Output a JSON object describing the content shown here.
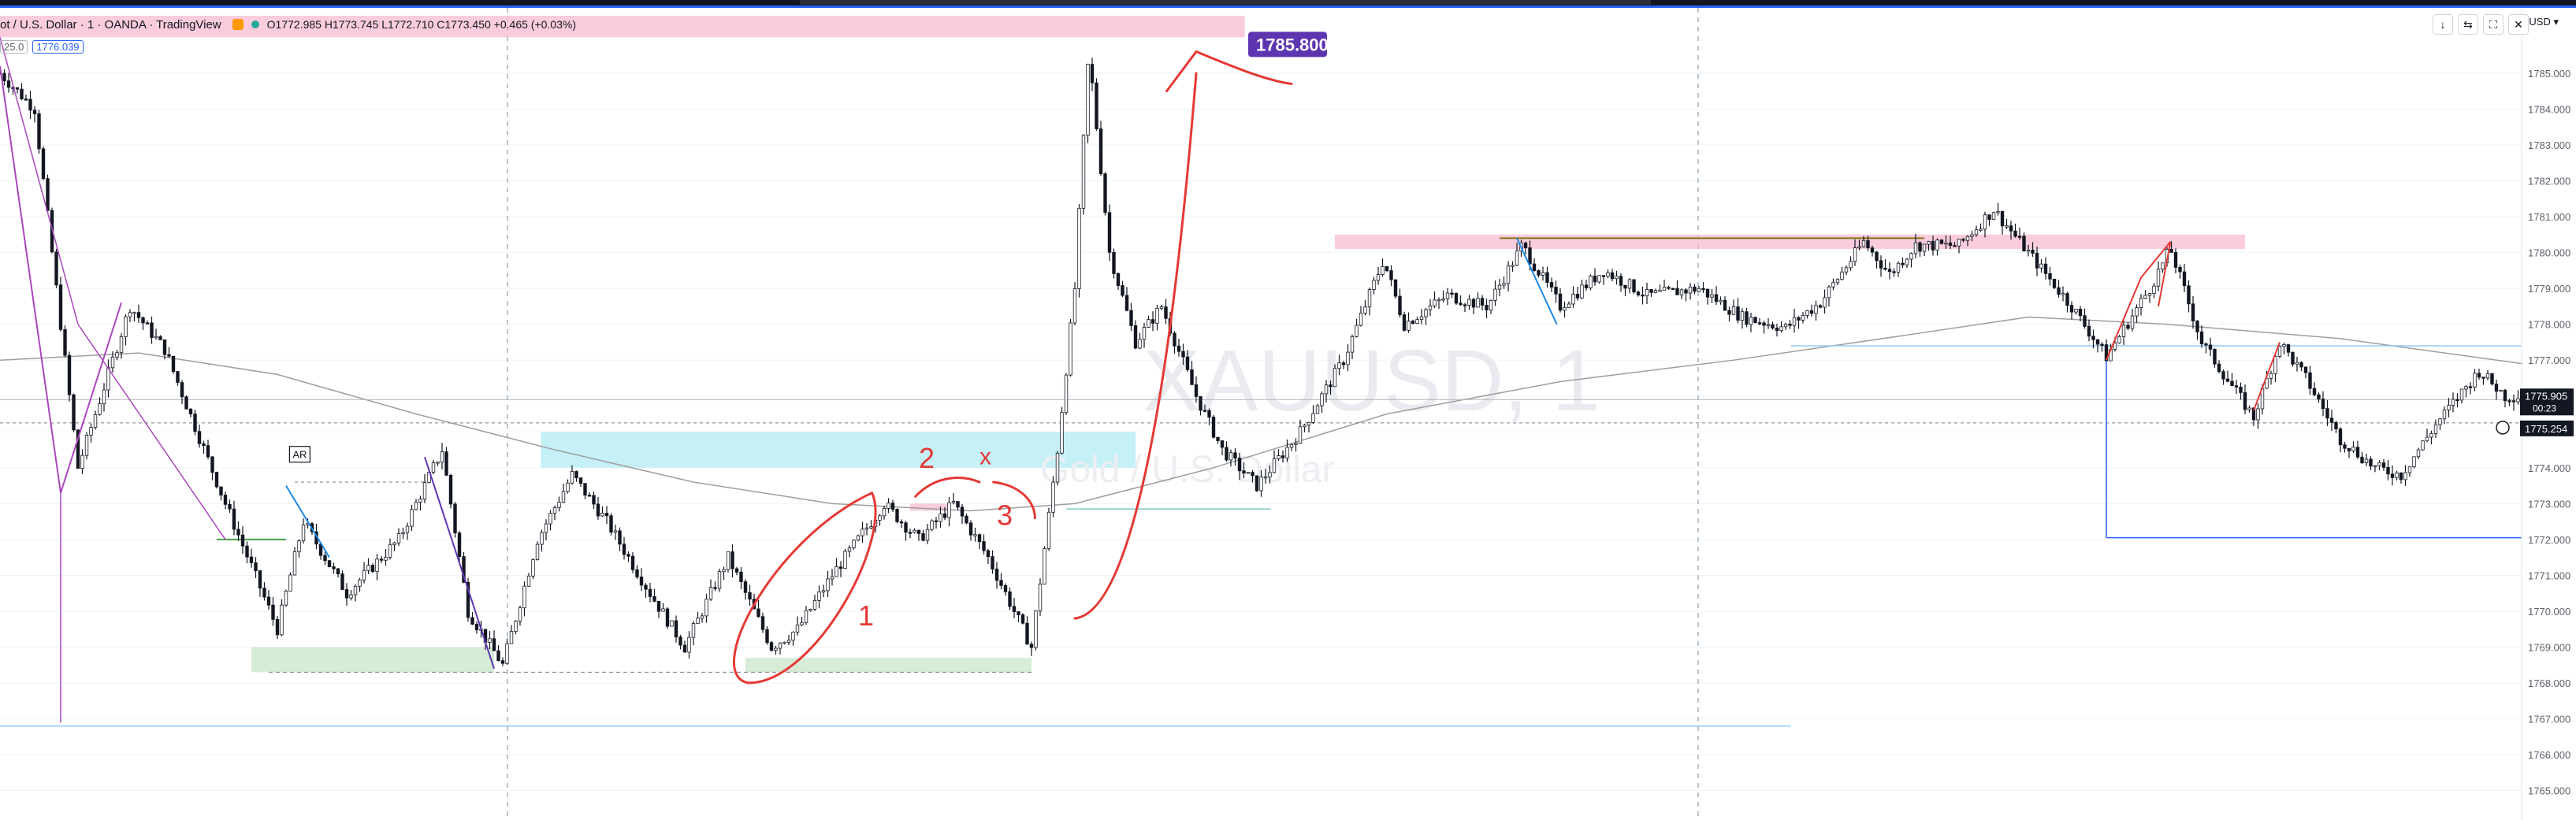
{
  "window": {
    "symbol_title": "ot / U.S. Dollar · 1 · OANDA · TradingView",
    "ohlc": "O1772.985 H1773.745 L1772.710 C1773.450 +0.465 (+0.03%)",
    "indicator_label": "25.0",
    "indicator_value": "1776.039",
    "currency_label": "USD",
    "controls": [
      "↓",
      "⇆",
      "⛶",
      "✕"
    ]
  },
  "chart_data": {
    "type": "candlestick",
    "watermark": "XAUUSD, 1",
    "watermark_sub": "Gold / U.S. Dollar",
    "ylim": [
      1764.4,
      1786.6
    ],
    "y_ticks": [
      1765,
      1766,
      1767,
      1768,
      1769,
      1770,
      1771,
      1772,
      1773,
      1774,
      1775,
      1776,
      1777,
      1778,
      1779,
      1780,
      1781,
      1782,
      1783,
      1784,
      1785
    ],
    "tick_format_decimals": 3,
    "price_path": [
      [
        0,
        1785.0
      ],
      [
        20,
        1784.0
      ],
      [
        45,
        1774.0
      ],
      [
        75,
        1778.5
      ],
      [
        95,
        1777.3
      ],
      [
        130,
        1773.0
      ],
      [
        160,
        1769.5
      ],
      [
        175,
        1772.5
      ],
      [
        200,
        1770.5
      ],
      [
        230,
        1772.0
      ],
      [
        255,
        1774.5
      ],
      [
        270,
        1770.0
      ],
      [
        290,
        1768.5
      ],
      [
        310,
        1772.0
      ],
      [
        330,
        1773.8
      ],
      [
        350,
        1772.5
      ],
      [
        375,
        1770.5
      ],
      [
        395,
        1769.0
      ],
      [
        420,
        1771.5
      ],
      [
        445,
        1769.0
      ],
      [
        460,
        1769.5
      ],
      [
        480,
        1771.0
      ],
      [
        510,
        1773.0
      ],
      [
        530,
        1772.0
      ],
      [
        550,
        1773.0
      ],
      [
        570,
        1771.5
      ],
      [
        595,
        1769.0
      ],
      [
        610,
        1774.5
      ],
      [
        620,
        1779.0
      ],
      [
        628,
        1785.6
      ],
      [
        640,
        1780.0
      ],
      [
        655,
        1777.5
      ],
      [
        670,
        1778.5
      ],
      [
        690,
        1776.0
      ],
      [
        705,
        1774.5
      ],
      [
        725,
        1773.5
      ],
      [
        750,
        1775.0
      ],
      [
        775,
        1777.0
      ],
      [
        798,
        1779.8
      ],
      [
        810,
        1778.0
      ],
      [
        835,
        1778.8
      ],
      [
        858,
        1778.5
      ],
      [
        878,
        1780.2
      ],
      [
        900,
        1778.5
      ],
      [
        925,
        1779.5
      ],
      [
        950,
        1778.8
      ],
      [
        980,
        1779.0
      ],
      [
        1005,
        1778.2
      ],
      [
        1030,
        1777.9
      ],
      [
        1050,
        1778.6
      ],
      [
        1075,
        1780.3
      ],
      [
        1090,
        1779.4
      ],
      [
        1105,
        1780.2
      ],
      [
        1130,
        1780.2
      ],
      [
        1150,
        1781.2
      ],
      [
        1170,
        1780.0
      ],
      [
        1195,
        1778.5
      ],
      [
        1215,
        1777.1
      ],
      [
        1240,
        1779.0
      ],
      [
        1252,
        1780.1
      ],
      [
        1270,
        1777.5
      ],
      [
        1300,
        1775.4
      ],
      [
        1315,
        1777.5
      ],
      [
        1330,
        1776.5
      ],
      [
        1350,
        1774.8
      ],
      [
        1370,
        1774.0
      ],
      [
        1385,
        1773.8
      ],
      [
        1405,
        1775.2
      ],
      [
        1430,
        1776.7
      ],
      [
        1445,
        1776.0
      ],
      [
        1455,
        1776.0
      ]
    ],
    "moving_average": [
      [
        0,
        1777.0
      ],
      [
        80,
        1777.2
      ],
      [
        160,
        1776.6
      ],
      [
        240,
        1775.5
      ],
      [
        320,
        1774.5
      ],
      [
        400,
        1773.6
      ],
      [
        480,
        1773.0
      ],
      [
        560,
        1772.8
      ],
      [
        620,
        1773.0
      ],
      [
        700,
        1774.0
      ],
      [
        800,
        1775.5
      ],
      [
        900,
        1776.4
      ],
      [
        1000,
        1777.0
      ],
      [
        1100,
        1777.7
      ],
      [
        1170,
        1778.2
      ],
      [
        1250,
        1778.0
      ],
      [
        1350,
        1777.6
      ],
      [
        1455,
        1776.9
      ]
    ],
    "price_label_top": "1785.800",
    "price_label_right_1": "1775.905",
    "price_label_right_time": "00:23",
    "price_label_right_2": "1775.254",
    "box_labels": [
      "AR"
    ],
    "annotation_labels": [
      "1",
      "2",
      "3",
      "x"
    ],
    "zones": [
      {
        "color": "#f8bbd0",
        "x0": 0,
        "x1": 718,
        "y0": 1786.0,
        "y1": 1786.6
      },
      {
        "color": "#b2ebf2",
        "x0": 312,
        "x1": 655,
        "y0": 1774.0,
        "y1": 1775.0
      },
      {
        "color": "#f8bbd0",
        "x0": 770,
        "x1": 1295,
        "y0": 1780.1,
        "y1": 1780.5
      },
      {
        "color": "#c8e6c9",
        "x0": 145,
        "x1": 285,
        "y0": 1768.3,
        "y1": 1769.0
      },
      {
        "color": "#c8e6c9",
        "x0": 430,
        "x1": 595,
        "y0": 1768.3,
        "y1": 1768.7
      },
      {
        "color": "#f8bbd0",
        "x0": 525,
        "x1": 548,
        "y0": 1772.8,
        "y1": 1773.0
      }
    ],
    "colors": {
      "up": "#131722",
      "down": "#131722",
      "grid": "#f0f3fa",
      "axis_text": "#5d606b",
      "annotation_red": "#e53935",
      "purple_label": "#5e35b1",
      "blue_line": "#2962ff",
      "ma": "#9e9e9e",
      "magenta": "#ab47bc",
      "green_line": "#43a047"
    }
  }
}
